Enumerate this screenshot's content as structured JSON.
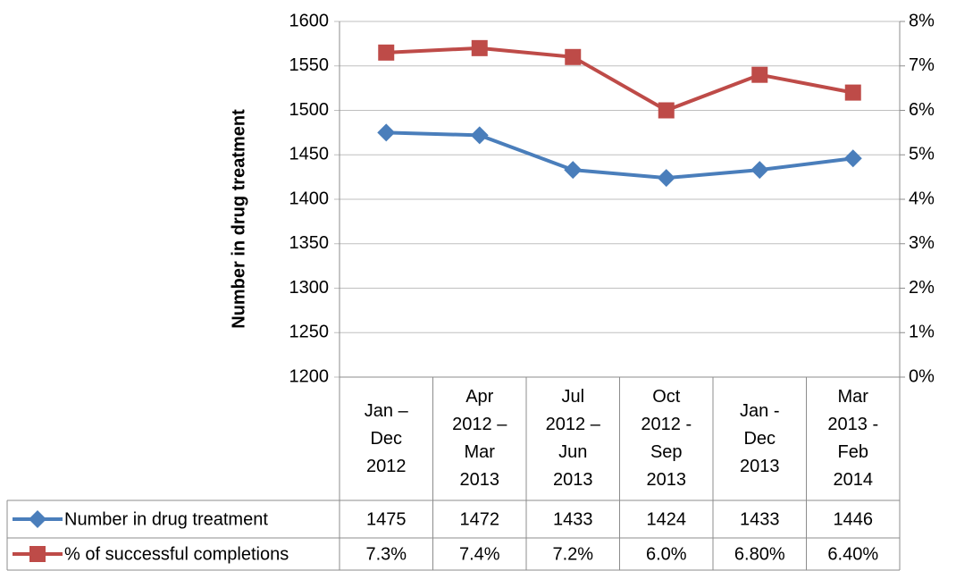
{
  "chart_data": {
    "type": "line",
    "y_label": "Number in drug treatment",
    "categories": [
      "Jan – Dec 2012",
      "Apr 2012 – Mar 2013",
      "Jul 2012 – Jun 2013",
      "Oct 2012 - Sep 2013",
      "Jan - Dec 2013",
      "Mar 2013 - Feb 2014"
    ],
    "series": [
      {
        "name": "Number in drug treatment",
        "color": "#4a7ebb",
        "marker": "diamond",
        "values": [
          1475,
          1472,
          1433,
          1424,
          1433,
          1446
        ]
      },
      {
        "name": "% of successful completions",
        "color": "#be4b48",
        "marker": "square",
        "axis": "y2",
        "values": [
          7.3,
          7.4,
          7.2,
          6.0,
          6.8,
          6.4
        ],
        "value_labels": [
          "7.3%",
          "7.4%",
          "7.2%",
          "6.0%",
          "6.80%",
          "6.40%"
        ]
      }
    ],
    "ylim": [
      1200,
      1600
    ],
    "yticks": [
      1200,
      1250,
      1300,
      1350,
      1400,
      1450,
      1500,
      1550,
      1600
    ],
    "y2lim": [
      0,
      8
    ],
    "y2ticks": [
      {
        "value": 0,
        "label": "0%"
      },
      {
        "value": 1,
        "label": "1%"
      },
      {
        "value": 2,
        "label": "2%"
      },
      {
        "value": 3,
        "label": "3%"
      },
      {
        "value": 4,
        "label": "4%"
      },
      {
        "value": 5,
        "label": "5%"
      },
      {
        "value": 6,
        "label": "6%"
      },
      {
        "value": 7,
        "label": "7%"
      },
      {
        "value": 8,
        "label": "8%"
      }
    ],
    "grid": true,
    "data_table": true
  }
}
